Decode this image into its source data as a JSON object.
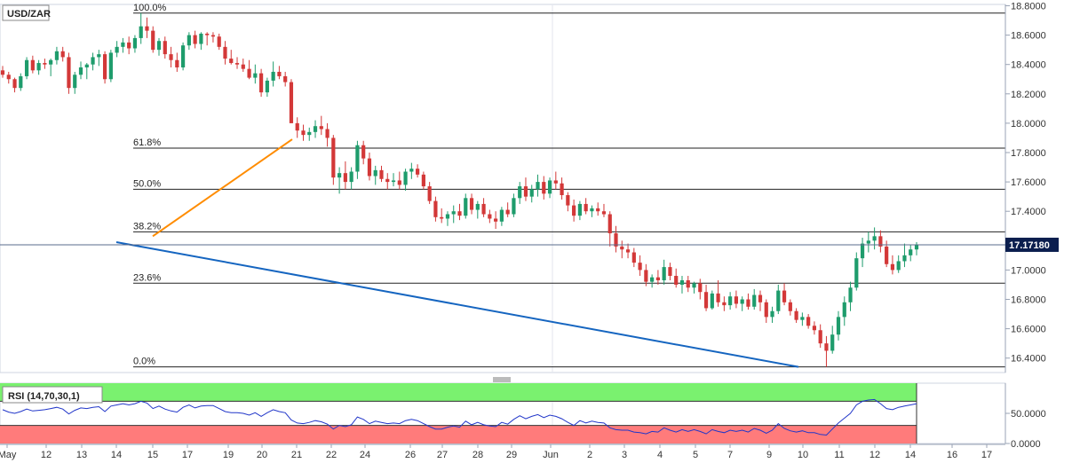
{
  "chart_data": [
    {
      "type": "candlestick",
      "symbol": "USD/ZAR",
      "y_axis_labels": [
        "18.8000",
        "18.6000",
        "18.4000",
        "18.2000",
        "18.0000",
        "17.8000",
        "17.6000",
        "17.4000",
        "17.2000",
        "17.0000",
        "16.8000",
        "16.6000",
        "16.4000"
      ],
      "ylim": [
        16.28,
        18.84
      ],
      "x_axis_labels": [
        "May",
        "12",
        "13",
        "14",
        "15",
        "17",
        "19",
        "20",
        "21",
        "22",
        "24",
        "26",
        "27",
        "28",
        "29",
        "Jun",
        "2",
        "3",
        "4",
        "5",
        "7",
        "9",
        "10",
        "11",
        "12",
        "14",
        "16",
        "17"
      ],
      "last_price": "17.17180",
      "fibonacci_levels": [
        {
          "label": "100.0%",
          "value": 18.75
        },
        {
          "label": "61.8%",
          "value": 17.83
        },
        {
          "label": "50.0%",
          "value": 17.55
        },
        {
          "label": "38.2%",
          "value": 17.26
        },
        {
          "label": "23.6%",
          "value": 16.91
        },
        {
          "label": "0.0%",
          "value": 16.34
        }
      ],
      "trendlines": [
        {
          "color": "#ff8c00",
          "from": {
            "x": "21",
            "y": 17.89
          },
          "to": {
            "x": "15",
            "y": 17.23
          }
        },
        {
          "color": "#1565c0",
          "from": {
            "x": "10",
            "y": 16.34
          },
          "to": {
            "x": "14",
            "y": 17.19
          }
        }
      ],
      "candles": [
        [
          18.36,
          18.39,
          18.31,
          18.33
        ],
        [
          18.33,
          18.35,
          18.27,
          18.3
        ],
        [
          18.3,
          18.31,
          18.21,
          18.24
        ],
        [
          18.24,
          18.34,
          18.22,
          18.32
        ],
        [
          18.32,
          18.45,
          18.3,
          18.43
        ],
        [
          18.43,
          18.46,
          18.34,
          18.36
        ],
        [
          18.36,
          18.43,
          18.33,
          18.41
        ],
        [
          18.41,
          18.44,
          18.37,
          18.4
        ],
        [
          18.4,
          18.44,
          18.32,
          18.43
        ],
        [
          18.43,
          18.52,
          18.4,
          18.49
        ],
        [
          18.49,
          18.52,
          18.42,
          18.45
        ],
        [
          18.45,
          18.48,
          18.2,
          18.24
        ],
        [
          18.24,
          18.35,
          18.2,
          18.33
        ],
        [
          18.33,
          18.42,
          18.3,
          18.38
        ],
        [
          18.38,
          18.41,
          18.3,
          18.4
        ],
        [
          18.4,
          18.48,
          18.36,
          18.45
        ],
        [
          18.45,
          18.5,
          18.39,
          18.47
        ],
        [
          18.47,
          18.49,
          18.27,
          18.3
        ],
        [
          18.3,
          18.5,
          18.28,
          18.48
        ],
        [
          18.48,
          18.56,
          18.45,
          18.52
        ],
        [
          18.52,
          18.58,
          18.48,
          18.55
        ],
        [
          18.55,
          18.59,
          18.47,
          18.51
        ],
        [
          18.51,
          18.6,
          18.48,
          18.58
        ],
        [
          18.58,
          18.75,
          18.54,
          18.66
        ],
        [
          18.66,
          18.72,
          18.58,
          18.63
        ],
        [
          18.63,
          18.66,
          18.48,
          18.5
        ],
        [
          18.5,
          18.58,
          18.46,
          18.56
        ],
        [
          18.56,
          18.59,
          18.44,
          18.47
        ],
        [
          18.47,
          18.52,
          18.38,
          18.43
        ],
        [
          18.43,
          18.48,
          18.35,
          18.38
        ],
        [
          18.38,
          18.55,
          18.36,
          18.53
        ],
        [
          18.53,
          18.62,
          18.5,
          18.6
        ],
        [
          18.6,
          18.63,
          18.51,
          18.54
        ],
        [
          18.54,
          18.62,
          18.5,
          18.61
        ],
        [
          18.61,
          18.62,
          18.53,
          18.6
        ],
        [
          18.6,
          18.62,
          18.55,
          18.59
        ],
        [
          18.59,
          18.61,
          18.5,
          18.52
        ],
        [
          18.52,
          18.56,
          18.4,
          18.44
        ],
        [
          18.44,
          18.5,
          18.4,
          18.41
        ],
        [
          18.41,
          18.45,
          18.37,
          18.4
        ],
        [
          18.4,
          18.44,
          18.35,
          18.37
        ],
        [
          18.37,
          18.43,
          18.3,
          18.31
        ],
        [
          18.31,
          18.4,
          18.27,
          18.34
        ],
        [
          18.34,
          18.37,
          18.18,
          18.21
        ],
        [
          18.21,
          18.31,
          18.18,
          18.29
        ],
        [
          18.29,
          18.42,
          18.25,
          18.35
        ],
        [
          18.35,
          18.39,
          18.3,
          18.32
        ],
        [
          18.32,
          18.35,
          18.25,
          18.28
        ],
        [
          18.28,
          18.3,
          18.0,
          18.0
        ],
        [
          18.0,
          18.04,
          17.9,
          17.95
        ],
        [
          17.95,
          17.99,
          17.88,
          17.92
        ],
        [
          17.92,
          17.97,
          17.88,
          17.94
        ],
        [
          17.94,
          18.02,
          17.9,
          17.98
        ],
        [
          17.98,
          18.05,
          17.92,
          17.96
        ],
        [
          17.96,
          18.0,
          17.84,
          17.9
        ],
        [
          17.9,
          17.92,
          17.58,
          17.63
        ],
        [
          17.63,
          17.7,
          17.52,
          17.66
        ],
        [
          17.66,
          17.74,
          17.55,
          17.6
        ],
        [
          17.6,
          17.7,
          17.55,
          17.67
        ],
        [
          17.67,
          17.88,
          17.62,
          17.85
        ],
        [
          17.85,
          17.88,
          17.72,
          17.76
        ],
        [
          17.76,
          17.8,
          17.61,
          17.64
        ],
        [
          17.64,
          17.71,
          17.58,
          17.68
        ],
        [
          17.68,
          17.71,
          17.6,
          17.62
        ],
        [
          17.62,
          17.66,
          17.55,
          17.6
        ],
        [
          17.6,
          17.66,
          17.57,
          17.61
        ],
        [
          17.61,
          17.67,
          17.55,
          17.58
        ],
        [
          17.58,
          17.69,
          17.54,
          17.67
        ],
        [
          17.67,
          17.73,
          17.62,
          17.69
        ],
        [
          17.69,
          17.72,
          17.63,
          17.65
        ],
        [
          17.65,
          17.67,
          17.55,
          17.57
        ],
        [
          17.57,
          17.6,
          17.45,
          17.47
        ],
        [
          17.47,
          17.5,
          17.33,
          17.36
        ],
        [
          17.36,
          17.42,
          17.32,
          17.35
        ],
        [
          17.35,
          17.4,
          17.3,
          17.38
        ],
        [
          17.38,
          17.44,
          17.32,
          17.4
        ],
        [
          17.4,
          17.45,
          17.34,
          17.37
        ],
        [
          17.37,
          17.52,
          17.35,
          17.49
        ],
        [
          17.49,
          17.52,
          17.38,
          17.41
        ],
        [
          17.41,
          17.47,
          17.35,
          17.45
        ],
        [
          17.45,
          17.49,
          17.36,
          17.38
        ],
        [
          17.38,
          17.41,
          17.32,
          17.35
        ],
        [
          17.35,
          17.4,
          17.28,
          17.33
        ],
        [
          17.33,
          17.43,
          17.3,
          17.41
        ],
        [
          17.41,
          17.46,
          17.36,
          17.38
        ],
        [
          17.38,
          17.52,
          17.36,
          17.49
        ],
        [
          17.49,
          17.6,
          17.45,
          17.57
        ],
        [
          17.57,
          17.63,
          17.47,
          17.5
        ],
        [
          17.5,
          17.58,
          17.46,
          17.55
        ],
        [
          17.55,
          17.65,
          17.5,
          17.6
        ],
        [
          17.6,
          17.64,
          17.48,
          17.52
        ],
        [
          17.52,
          17.63,
          17.49,
          17.61
        ],
        [
          17.61,
          17.67,
          17.55,
          17.59
        ],
        [
          17.59,
          17.63,
          17.48,
          17.51
        ],
        [
          17.51,
          17.53,
          17.4,
          17.44
        ],
        [
          17.44,
          17.48,
          17.33,
          17.37
        ],
        [
          17.37,
          17.47,
          17.34,
          17.45
        ],
        [
          17.45,
          17.49,
          17.38,
          17.4
        ],
        [
          17.4,
          17.44,
          17.36,
          17.42
        ],
        [
          17.42,
          17.46,
          17.37,
          17.4
        ],
        [
          17.4,
          17.45,
          17.36,
          17.38
        ],
        [
          17.38,
          17.4,
          17.16,
          17.25
        ],
        [
          17.25,
          17.3,
          17.12,
          17.16
        ],
        [
          17.16,
          17.2,
          17.08,
          17.14
        ],
        [
          17.14,
          17.18,
          17.08,
          17.12
        ],
        [
          17.12,
          17.15,
          17.02,
          17.05
        ],
        [
          17.05,
          17.1,
          16.96,
          17.0
        ],
        [
          17.0,
          17.04,
          16.89,
          16.92
        ],
        [
          16.92,
          16.97,
          16.88,
          16.95
        ],
        [
          16.95,
          17.0,
          16.9,
          16.93
        ],
        [
          16.93,
          17.07,
          16.9,
          17.02
        ],
        [
          17.02,
          17.05,
          16.93,
          16.96
        ],
        [
          16.96,
          17.01,
          16.88,
          16.9
        ],
        [
          16.9,
          16.96,
          16.84,
          16.93
        ],
        [
          16.93,
          16.96,
          16.85,
          16.88
        ],
        [
          16.88,
          16.92,
          16.84,
          16.91
        ],
        [
          16.91,
          16.94,
          16.8,
          16.85
        ],
        [
          16.85,
          16.9,
          16.72,
          16.74
        ],
        [
          16.74,
          16.86,
          16.73,
          16.84
        ],
        [
          16.84,
          16.93,
          16.75,
          16.78
        ],
        [
          16.78,
          16.82,
          16.72,
          16.76
        ],
        [
          16.76,
          16.85,
          16.73,
          16.82
        ],
        [
          16.82,
          16.86,
          16.74,
          16.77
        ],
        [
          16.77,
          16.82,
          16.72,
          16.8
        ],
        [
          16.8,
          16.84,
          16.73,
          16.75
        ],
        [
          16.75,
          16.87,
          16.73,
          16.83
        ],
        [
          16.83,
          16.86,
          16.72,
          16.78
        ],
        [
          16.78,
          16.8,
          16.64,
          16.68
        ],
        [
          16.68,
          16.75,
          16.64,
          16.72
        ],
        [
          16.72,
          16.9,
          16.7,
          16.86
        ],
        [
          16.86,
          16.91,
          16.76,
          16.78
        ],
        [
          16.78,
          16.8,
          16.69,
          16.72
        ],
        [
          16.72,
          16.74,
          16.64,
          16.66
        ],
        [
          16.66,
          16.71,
          16.62,
          16.68
        ],
        [
          16.68,
          16.7,
          16.6,
          16.62
        ],
        [
          16.62,
          16.65,
          16.56,
          16.59
        ],
        [
          16.59,
          16.63,
          16.47,
          16.5
        ],
        [
          16.5,
          16.55,
          16.34,
          16.45
        ],
        [
          16.45,
          16.62,
          16.43,
          16.56
        ],
        [
          16.56,
          16.72,
          16.52,
          16.68
        ],
        [
          16.68,
          16.82,
          16.62,
          16.78
        ],
        [
          16.78,
          16.92,
          16.72,
          16.88
        ],
        [
          16.88,
          17.12,
          16.86,
          17.08
        ],
        [
          17.08,
          17.22,
          17.02,
          17.18
        ],
        [
          17.18,
          17.26,
          17.12,
          17.2
        ],
        [
          17.2,
          17.29,
          17.14,
          17.23
        ],
        [
          17.23,
          17.27,
          17.12,
          17.16
        ],
        [
          17.16,
          17.2,
          17.02,
          17.04
        ],
        [
          17.04,
          17.1,
          16.97,
          17.0
        ],
        [
          17.0,
          17.1,
          16.98,
          17.06
        ],
        [
          17.06,
          17.18,
          17.02,
          17.1
        ],
        [
          17.1,
          17.17,
          17.06,
          17.14
        ],
        [
          17.14,
          17.19,
          17.1,
          17.17
        ]
      ]
    },
    {
      "type": "line",
      "title": "RSI (14,70,30,1)",
      "y_axis_labels": [
        "50.0000",
        "0.0000"
      ],
      "ylim": [
        0,
        100
      ],
      "overbought": 70,
      "oversold": 30,
      "overbought_color": "#7af16f",
      "oversold_color": "#ff7b7b",
      "series": [
        {
          "values": [
            56,
            52,
            50,
            53,
            57,
            54,
            55,
            56,
            58,
            60,
            57,
            49,
            55,
            59,
            58,
            60,
            61,
            53,
            62,
            64,
            66,
            64,
            66,
            70,
            67,
            58,
            62,
            57,
            54,
            52,
            60,
            64,
            59,
            62,
            63,
            63,
            58,
            53,
            51,
            51,
            50,
            47,
            51,
            45,
            51,
            56,
            53,
            51,
            39,
            34,
            33,
            35,
            38,
            36,
            32,
            24,
            30,
            28,
            31,
            44,
            40,
            33,
            37,
            35,
            33,
            34,
            33,
            38,
            40,
            38,
            33,
            28,
            24,
            24,
            27,
            29,
            27,
            37,
            31,
            35,
            31,
            29,
            28,
            35,
            32,
            40,
            46,
            41,
            45,
            48,
            43,
            47,
            45,
            41,
            35,
            30,
            38,
            34,
            37,
            35,
            34,
            26,
            23,
            22,
            22,
            19,
            18,
            16,
            20,
            19,
            26,
            22,
            19,
            23,
            20,
            23,
            20,
            16,
            23,
            20,
            18,
            22,
            20,
            22,
            19,
            25,
            22,
            17,
            22,
            33,
            25,
            21,
            19,
            21,
            18,
            18,
            15,
            14,
            24,
            34,
            42,
            50,
            64,
            70,
            72,
            73,
            66,
            58,
            56,
            60,
            62,
            64,
            66
          ]
        }
      ]
    }
  ]
}
